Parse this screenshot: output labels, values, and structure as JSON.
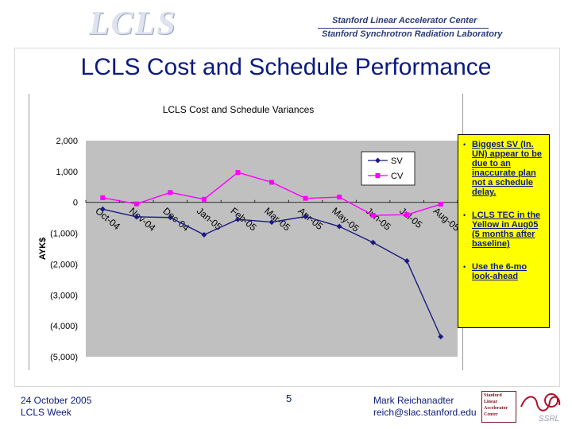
{
  "header": {
    "logo_text": "LCLS",
    "line1": "Stanford Linear Accelerator Center",
    "line2": "Stanford Synchrotron Radiation Laboratory"
  },
  "slide": {
    "title": "LCLS Cost and Schedule Performance"
  },
  "chart_data": {
    "type": "line",
    "title": "LCLS Cost and Schedule Variances",
    "ylabel": "AYK$",
    "xlabel": "",
    "ylim": [
      -5000,
      2000
    ],
    "yticks": [
      2000,
      1000,
      0,
      -1000,
      -2000,
      -3000,
      -4000,
      -5000
    ],
    "ytick_labels": [
      "2,000",
      "1,000",
      "0",
      "(1,000)",
      "(2,000)",
      "(3,000)",
      "(4,000)",
      "(5,000)"
    ],
    "categories": [
      "Oct-04",
      "Nov-04",
      "Dec-04",
      "Jan-05",
      "Feb-05",
      "Mar-05",
      "Apr-05",
      "May-05",
      "Jun-05",
      "Jul-05",
      "Aug-05"
    ],
    "series": [
      {
        "name": "SV",
        "color": "#1a1a80",
        "marker": "diamond",
        "values": [
          -220,
          -470,
          -490,
          -1050,
          -550,
          -640,
          -460,
          -780,
          -1300,
          -1900,
          -4350
        ]
      },
      {
        "name": "CV",
        "color": "#ff00ff",
        "marker": "square",
        "values": [
          150,
          -50,
          320,
          100,
          970,
          650,
          130,
          170,
          -420,
          -400,
          -60
        ]
      }
    ],
    "legend": "top-right",
    "grid": false,
    "plot_background": "#c0c0c0"
  },
  "notes": [
    "Biggest SV (In. UN) appear to be due to an inaccurate plan not a schedule delay.",
    "LCLS TEC in the Yellow in Aug05 (5 months after baseline)",
    "Use the 6-mo look-ahead"
  ],
  "footer": {
    "date": "24 October 2005",
    "event": "LCLS Week",
    "page": "5",
    "author": "Mark Reichanadter",
    "email": "reich@slac.stanford.edu"
  },
  "logos": {
    "lab_lines": [
      "Stanford",
      "Linear",
      "Accelerator",
      "Center"
    ],
    "ssrl_text": "SSRL"
  }
}
